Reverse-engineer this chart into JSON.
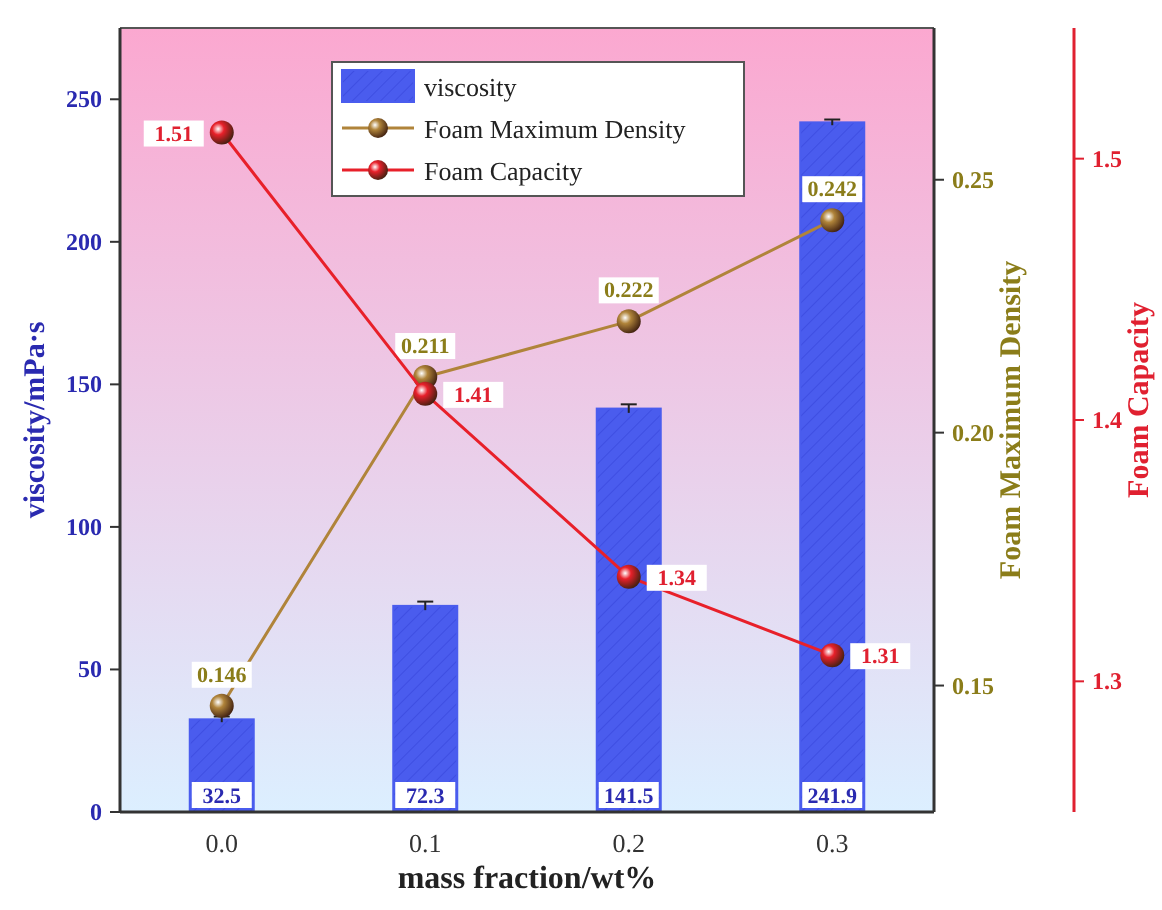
{
  "chart_data": {
    "type": "bar",
    "xlabel": "mass fraction/wt%",
    "ylabel": "viscosity/mPa·s",
    "y2label": "Foam Maximum Density",
    "y3label": "Foam Capacity",
    "categories": [
      "0.0",
      "0.1",
      "0.2",
      "0.3"
    ],
    "series": [
      {
        "name": "viscosity",
        "color": "#4a5cee",
        "values": [
          32.5,
          72.3,
          141.5,
          241.9
        ],
        "errors": [
          1,
          1.5,
          1.5,
          1
        ]
      },
      {
        "name": "Foam Maximum Density",
        "type": "line",
        "axis": "y2",
        "color": "#b0843a",
        "values": [
          0.146,
          0.211,
          0.222,
          0.242
        ]
      },
      {
        "name": "Foam Capacity",
        "type": "line",
        "axis": "y3",
        "color": "#e8202a",
        "values": [
          1.51,
          1.41,
          1.34,
          1.31
        ]
      }
    ],
    "ylim": [
      0,
      275
    ],
    "yticks": [
      0,
      50,
      100,
      150,
      200,
      250
    ],
    "y2lim": [
      0.125,
      0.28
    ],
    "y2ticks": [
      {
        "value": 0.15,
        "label": "0.15"
      },
      {
        "value": 0.2,
        "label": "0.20"
      },
      {
        "value": 0.25,
        "label": "0.25"
      }
    ],
    "y3lim": [
      1.25,
      1.55
    ],
    "y3ticks": [
      {
        "value": 1.3,
        "label": "1.3"
      },
      {
        "value": 1.4,
        "label": "1.4"
      },
      {
        "value": 1.5,
        "label": "1.5"
      }
    ],
    "data_labels": true,
    "marker": "circle",
    "legend": "top"
  }
}
